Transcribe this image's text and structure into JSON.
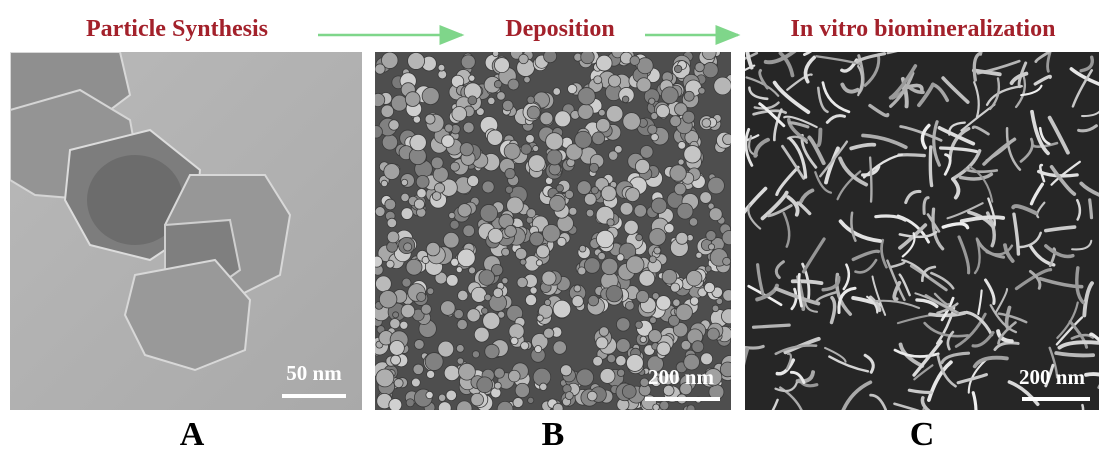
{
  "header": {
    "steps": [
      "Particle Synthesis",
      "Deposition",
      "In vitro biomineralization"
    ]
  },
  "panels": [
    {
      "label": "A",
      "scale_bar": "50 nm"
    },
    {
      "label": "B",
      "scale_bar": "200 nm"
    },
    {
      "label": "C",
      "scale_bar": "200 nm"
    }
  ]
}
